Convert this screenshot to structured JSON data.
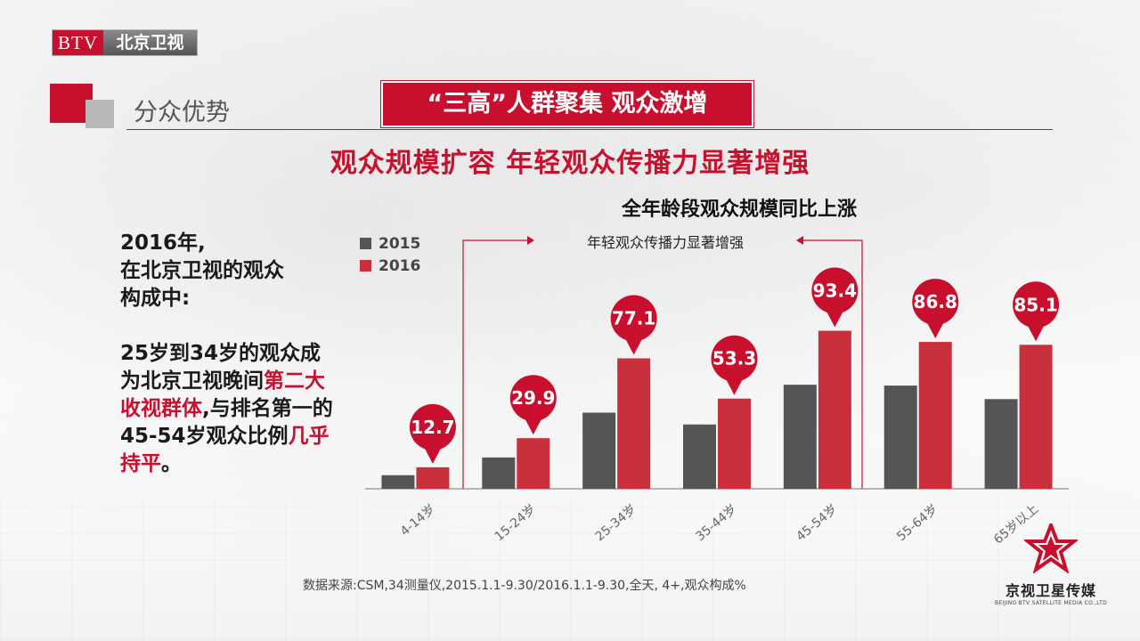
{
  "logo": {
    "btv": "BTV",
    "name": "北京卫视"
  },
  "section_title": "分众优势",
  "banner": "“三高”人群聚集  观众激增",
  "headline": "观众规模扩容  年轻观众传播力显著增强",
  "left_text": {
    "line1": "2016年,",
    "line2": "在北京卫视的观众",
    "line3": "构成中:",
    "p2_part1": "25岁到34岁的观众成为北京卫视晚间",
    "p2_red1": "第二大收视群体",
    "p2_part2": ",与排名第一的45-54岁观众比例",
    "p2_red2": "几乎持平",
    "p2_end": "。"
  },
  "source": "数据来源:CSM,34测量仪,2015.1.1-9.30/2016.1.1-9.30,全天, 4+,观众构成%",
  "brand": {
    "name": "京视卫星传媒",
    "en": "BEIJING BTV SATELLITE MEDIA CO.,LTD"
  },
  "colors": {
    "accent": "#c8102e",
    "series_2015": "#555558",
    "series_2016": "#c8313c"
  },
  "chart_data": {
    "type": "bar",
    "title": "全年龄段观众规模同比上涨",
    "annotation": "年轻观众传播力显著增强",
    "categories": [
      "4-14岁",
      "15-24岁",
      "25-34岁",
      "35-44岁",
      "45-54岁",
      "55-64岁",
      "65岁以上"
    ],
    "series": [
      {
        "name": "2015",
        "values": [
          8.0,
          18.5,
          45.0,
          38.0,
          61.5,
          61.0,
          53.0
        ]
      },
      {
        "name": "2016",
        "values": [
          12.7,
          29.9,
          77.1,
          53.3,
          93.4,
          86.8,
          85.1
        ]
      }
    ],
    "data_labels": [
      "12.7",
      "29.9",
      "77.1",
      "53.3",
      "93.4",
      "86.8",
      "85.1"
    ],
    "ylim": [
      0,
      100
    ],
    "grid": false,
    "legend": "top-left"
  }
}
